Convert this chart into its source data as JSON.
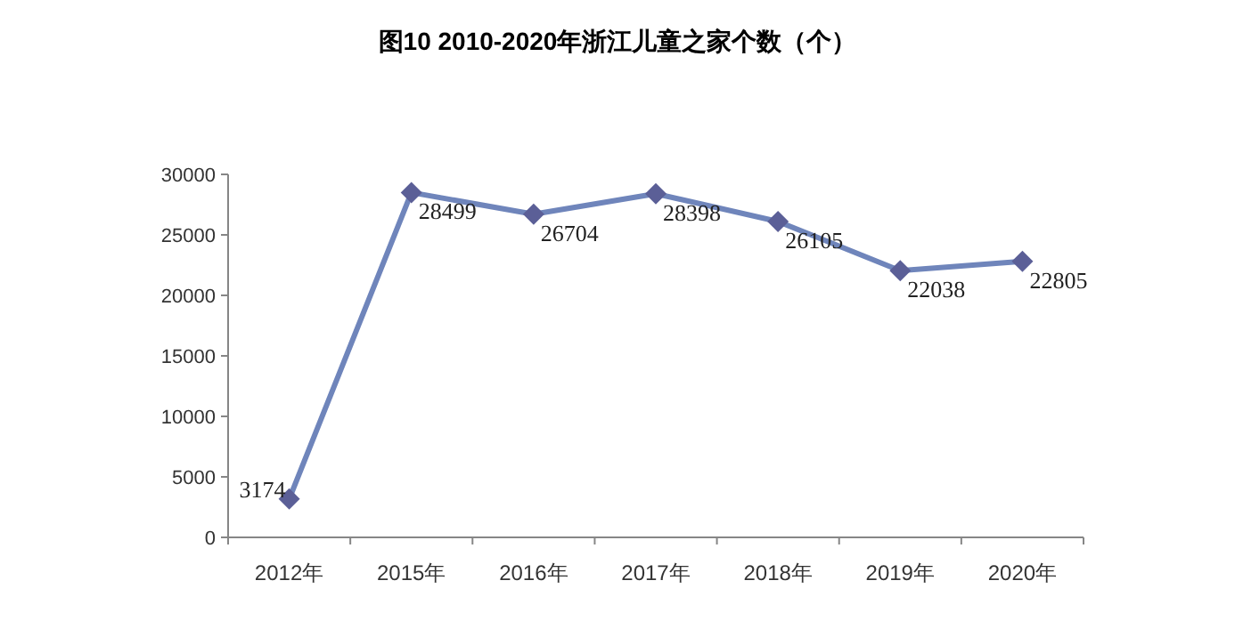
{
  "chart_data": {
    "type": "line",
    "title": "图10  2010-2020年浙江儿童之家个数（个）",
    "categories": [
      "2012年",
      "2015年",
      "2016年",
      "2017年",
      "2018年",
      "2019年",
      "2020年"
    ],
    "values": [
      3174,
      28499,
      26704,
      28398,
      26105,
      22038,
      22805
    ],
    "color": "#6f85bb",
    "marker": "diamond",
    "data_labels": true,
    "ylim": [
      0,
      30000
    ],
    "yticks": [
      0,
      5000,
      10000,
      15000,
      20000,
      25000,
      30000
    ]
  }
}
